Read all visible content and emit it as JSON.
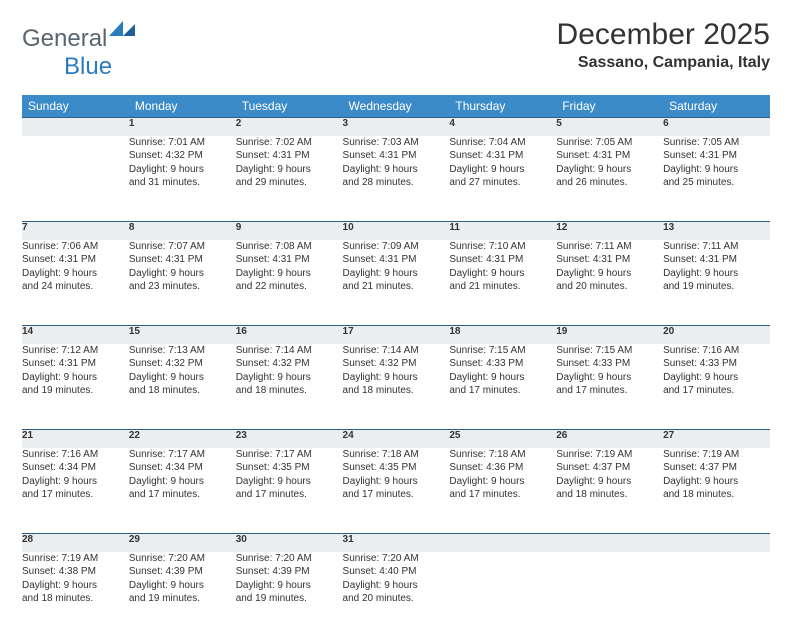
{
  "brand": {
    "general": "General",
    "blue": "Blue"
  },
  "header": {
    "month_title": "December 2025",
    "location": "Sassano, Campania, Italy"
  },
  "colors": {
    "header_bg": "#3b8bc9",
    "header_text": "#ffffff",
    "daynum_bg": "#ebeef1",
    "rule": "#2b5f8a",
    "logo_mark": "#2b7bbf"
  },
  "days_of_week": [
    "Sunday",
    "Monday",
    "Tuesday",
    "Wednesday",
    "Thursday",
    "Friday",
    "Saturday"
  ],
  "start_offset": 1,
  "cells": [
    {
      "n": "1",
      "sunrise": "7:01 AM",
      "sunset": "4:32 PM",
      "dl1": "Daylight: 9 hours",
      "dl2": "and 31 minutes."
    },
    {
      "n": "2",
      "sunrise": "7:02 AM",
      "sunset": "4:31 PM",
      "dl1": "Daylight: 9 hours",
      "dl2": "and 29 minutes."
    },
    {
      "n": "3",
      "sunrise": "7:03 AM",
      "sunset": "4:31 PM",
      "dl1": "Daylight: 9 hours",
      "dl2": "and 28 minutes."
    },
    {
      "n": "4",
      "sunrise": "7:04 AM",
      "sunset": "4:31 PM",
      "dl1": "Daylight: 9 hours",
      "dl2": "and 27 minutes."
    },
    {
      "n": "5",
      "sunrise": "7:05 AM",
      "sunset": "4:31 PM",
      "dl1": "Daylight: 9 hours",
      "dl2": "and 26 minutes."
    },
    {
      "n": "6",
      "sunrise": "7:05 AM",
      "sunset": "4:31 PM",
      "dl1": "Daylight: 9 hours",
      "dl2": "and 25 minutes."
    },
    {
      "n": "7",
      "sunrise": "7:06 AM",
      "sunset": "4:31 PM",
      "dl1": "Daylight: 9 hours",
      "dl2": "and 24 minutes."
    },
    {
      "n": "8",
      "sunrise": "7:07 AM",
      "sunset": "4:31 PM",
      "dl1": "Daylight: 9 hours",
      "dl2": "and 23 minutes."
    },
    {
      "n": "9",
      "sunrise": "7:08 AM",
      "sunset": "4:31 PM",
      "dl1": "Daylight: 9 hours",
      "dl2": "and 22 minutes."
    },
    {
      "n": "10",
      "sunrise": "7:09 AM",
      "sunset": "4:31 PM",
      "dl1": "Daylight: 9 hours",
      "dl2": "and 21 minutes."
    },
    {
      "n": "11",
      "sunrise": "7:10 AM",
      "sunset": "4:31 PM",
      "dl1": "Daylight: 9 hours",
      "dl2": "and 21 minutes."
    },
    {
      "n": "12",
      "sunrise": "7:11 AM",
      "sunset": "4:31 PM",
      "dl1": "Daylight: 9 hours",
      "dl2": "and 20 minutes."
    },
    {
      "n": "13",
      "sunrise": "7:11 AM",
      "sunset": "4:31 PM",
      "dl1": "Daylight: 9 hours",
      "dl2": "and 19 minutes."
    },
    {
      "n": "14",
      "sunrise": "7:12 AM",
      "sunset": "4:31 PM",
      "dl1": "Daylight: 9 hours",
      "dl2": "and 19 minutes."
    },
    {
      "n": "15",
      "sunrise": "7:13 AM",
      "sunset": "4:32 PM",
      "dl1": "Daylight: 9 hours",
      "dl2": "and 18 minutes."
    },
    {
      "n": "16",
      "sunrise": "7:14 AM",
      "sunset": "4:32 PM",
      "dl1": "Daylight: 9 hours",
      "dl2": "and 18 minutes."
    },
    {
      "n": "17",
      "sunrise": "7:14 AM",
      "sunset": "4:32 PM",
      "dl1": "Daylight: 9 hours",
      "dl2": "and 18 minutes."
    },
    {
      "n": "18",
      "sunrise": "7:15 AM",
      "sunset": "4:33 PM",
      "dl1": "Daylight: 9 hours",
      "dl2": "and 17 minutes."
    },
    {
      "n": "19",
      "sunrise": "7:15 AM",
      "sunset": "4:33 PM",
      "dl1": "Daylight: 9 hours",
      "dl2": "and 17 minutes."
    },
    {
      "n": "20",
      "sunrise": "7:16 AM",
      "sunset": "4:33 PM",
      "dl1": "Daylight: 9 hours",
      "dl2": "and 17 minutes."
    },
    {
      "n": "21",
      "sunrise": "7:16 AM",
      "sunset": "4:34 PM",
      "dl1": "Daylight: 9 hours",
      "dl2": "and 17 minutes."
    },
    {
      "n": "22",
      "sunrise": "7:17 AM",
      "sunset": "4:34 PM",
      "dl1": "Daylight: 9 hours",
      "dl2": "and 17 minutes."
    },
    {
      "n": "23",
      "sunrise": "7:17 AM",
      "sunset": "4:35 PM",
      "dl1": "Daylight: 9 hours",
      "dl2": "and 17 minutes."
    },
    {
      "n": "24",
      "sunrise": "7:18 AM",
      "sunset": "4:35 PM",
      "dl1": "Daylight: 9 hours",
      "dl2": "and 17 minutes."
    },
    {
      "n": "25",
      "sunrise": "7:18 AM",
      "sunset": "4:36 PM",
      "dl1": "Daylight: 9 hours",
      "dl2": "and 17 minutes."
    },
    {
      "n": "26",
      "sunrise": "7:19 AM",
      "sunset": "4:37 PM",
      "dl1": "Daylight: 9 hours",
      "dl2": "and 18 minutes."
    },
    {
      "n": "27",
      "sunrise": "7:19 AM",
      "sunset": "4:37 PM",
      "dl1": "Daylight: 9 hours",
      "dl2": "and 18 minutes."
    },
    {
      "n": "28",
      "sunrise": "7:19 AM",
      "sunset": "4:38 PM",
      "dl1": "Daylight: 9 hours",
      "dl2": "and 18 minutes."
    },
    {
      "n": "29",
      "sunrise": "7:20 AM",
      "sunset": "4:39 PM",
      "dl1": "Daylight: 9 hours",
      "dl2": "and 19 minutes."
    },
    {
      "n": "30",
      "sunrise": "7:20 AM",
      "sunset": "4:39 PM",
      "dl1": "Daylight: 9 hours",
      "dl2": "and 19 minutes."
    },
    {
      "n": "31",
      "sunrise": "7:20 AM",
      "sunset": "4:40 PM",
      "dl1": "Daylight: 9 hours",
      "dl2": "and 20 minutes."
    }
  ],
  "labels": {
    "sunrise": "Sunrise:",
    "sunset": "Sunset:"
  }
}
